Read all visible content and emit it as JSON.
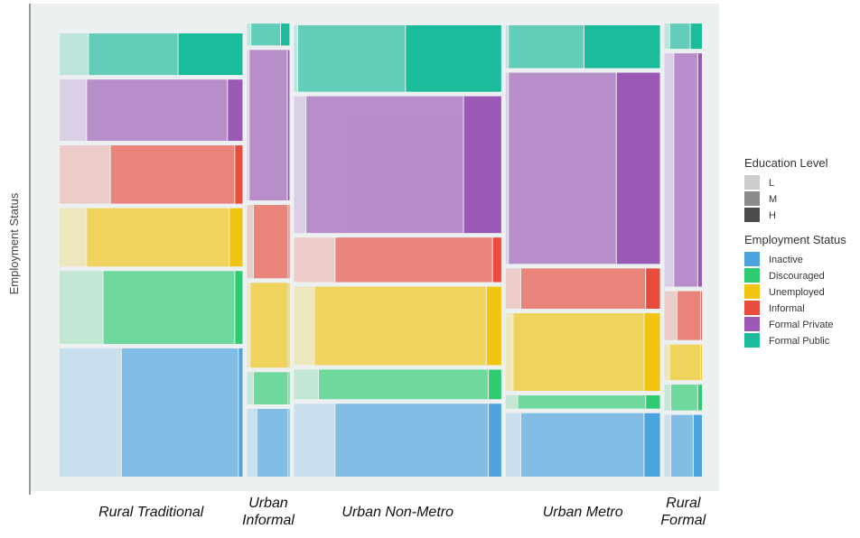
{
  "chart_data": {
    "type": "mosaic",
    "ylabel": "Employment Status",
    "categories": [
      "Rural Traditional",
      "Urban Informal",
      "Urban Non-Metro",
      "Urban Metro",
      "Rural Formal"
    ],
    "category_labels": [
      [
        "Rural Traditional"
      ],
      [
        "Urban",
        "Informal"
      ],
      [
        "Urban Non-Metro"
      ],
      [
        "Urban Metro"
      ],
      [
        "Rural",
        "Formal"
      ]
    ],
    "category_shares": [
      0.293,
      0.068,
      0.332,
      0.247,
      0.06
    ],
    "employment_status_order_bottom_to_top": [
      "Inactive",
      "Discouraged",
      "Unemployed",
      "Informal",
      "Formal Private",
      "Formal Public"
    ],
    "status_shares": {
      "Rural Traditional": [
        0.299,
        0.17,
        0.136,
        0.136,
        0.143,
        0.097
      ],
      "Urban Informal": [
        0.158,
        0.075,
        0.198,
        0.171,
        0.351,
        0.051
      ],
      "Urban Non-Metro": [
        0.17,
        0.069,
        0.183,
        0.104,
        0.319,
        0.155
      ],
      "Urban Metro": [
        0.148,
        0.031,
        0.181,
        0.094,
        0.446,
        0.1
      ],
      "Rural Formal": [
        0.144,
        0.06,
        0.083,
        0.114,
        0.544,
        0.059
      ]
    },
    "education_split": {
      "Rural Traditional": {
        "Inactive": [
          0.34,
          0.64,
          0.02
        ],
        "Discouraged": [
          0.24,
          0.72,
          0.04
        ],
        "Unemployed": [
          0.15,
          0.78,
          0.07
        ],
        "Informal": [
          0.28,
          0.68,
          0.04
        ],
        "Formal Private": [
          0.15,
          0.77,
          0.08
        ],
        "Formal Public": [
          0.16,
          0.49,
          0.35
        ]
      },
      "Urban Informal": {
        "Inactive": [
          0.24,
          0.74,
          0.02
        ],
        "Discouraged": [
          0.16,
          0.82,
          0.02
        ],
        "Unemployed": [
          0.08,
          0.9,
          0.02
        ],
        "Informal": [
          0.16,
          0.82,
          0.02
        ],
        "Formal Private": [
          0.06,
          0.9,
          0.04
        ],
        "Formal Public": [
          0.1,
          0.7,
          0.2
        ]
      },
      "Urban Non-Metro": {
        "Inactive": [
          0.2,
          0.74,
          0.06
        ],
        "Discouraged": [
          0.12,
          0.82,
          0.06
        ],
        "Unemployed": [
          0.1,
          0.83,
          0.07
        ],
        "Informal": [
          0.2,
          0.76,
          0.04
        ],
        "Formal Private": [
          0.06,
          0.76,
          0.18
        ],
        "Formal Public": [
          0.02,
          0.52,
          0.46
        ]
      },
      "Urban Metro": {
        "Inactive": [
          0.1,
          0.8,
          0.1
        ],
        "Discouraged": [
          0.08,
          0.83,
          0.09
        ],
        "Unemployed": [
          0.05,
          0.85,
          0.1
        ],
        "Informal": [
          0.1,
          0.81,
          0.09
        ],
        "Formal Private": [
          0.02,
          0.7,
          0.28
        ],
        "Formal Public": [
          0.02,
          0.49,
          0.49
        ]
      },
      "Rural Formal": {
        "Inactive": [
          0.18,
          0.6,
          0.22
        ],
        "Discouraged": [
          0.18,
          0.72,
          0.1
        ],
        "Unemployed": [
          0.15,
          0.83,
          0.02
        ],
        "Informal": [
          0.35,
          0.63,
          0.02
        ],
        "Formal Private": [
          0.26,
          0.64,
          0.1
        ],
        "Formal Public": [
          0.15,
          0.55,
          0.3
        ]
      }
    },
    "status_colors": {
      "Inactive": "#4aa3df",
      "Discouraged": "#2ecc71",
      "Unemployed": "#f1c40f",
      "Informal": "#e74c3c",
      "Formal Private": "#9b59b6",
      "Formal Public": "#1abc9c"
    },
    "education_opacity": {
      "L": 0.22,
      "M": 0.66,
      "H": 1.0
    },
    "legend": {
      "education_title": "Education Level",
      "education_levels": [
        {
          "label": "L",
          "color": "#cccccc"
        },
        {
          "label": "M",
          "color": "#8c8c8c"
        },
        {
          "label": "H",
          "color": "#4d4d4d"
        }
      ],
      "status_title": "Employment Status",
      "status_items": [
        "Inactive",
        "Discouraged",
        "Unemployed",
        "Informal",
        "Formal Private",
        "Formal Public"
      ],
      "position": "right"
    },
    "panel_background": "#ecf0f1",
    "grid": false
  }
}
